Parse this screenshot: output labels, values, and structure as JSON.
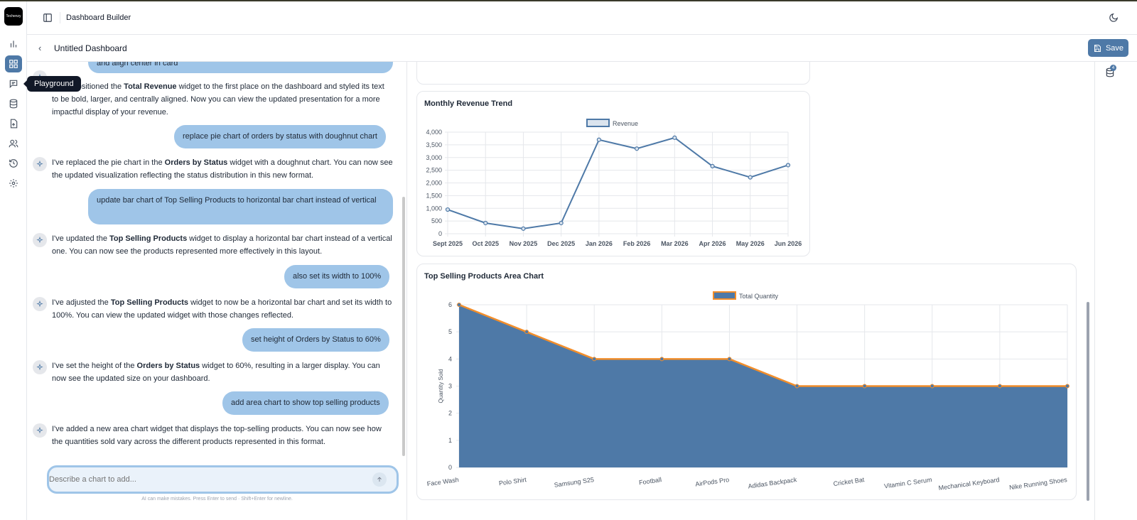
{
  "app": {
    "logo_text": "Techenzy",
    "title": "Dashboard Builder"
  },
  "tooltip": "Playground",
  "dashboard": {
    "title": "Untitled Dashboard",
    "save_label": "Save"
  },
  "sidebar": {
    "items": [
      {
        "icon": "bar-chart-icon"
      },
      {
        "icon": "grid-icon",
        "active": true
      },
      {
        "icon": "message-icon"
      },
      {
        "icon": "database-icon"
      },
      {
        "icon": "file-upload-icon"
      },
      {
        "icon": "users-icon"
      },
      {
        "icon": "history-icon"
      },
      {
        "icon": "settings-icon"
      }
    ]
  },
  "chat": {
    "messages": [
      {
        "role": "user",
        "text": "and align center in card"
      },
      {
        "role": "ai",
        "parts": [
          "I've repositioned the ",
          "Total Revenue",
          " widget to the first place on the dashboard and styled its text to be bold, larger, and centrally aligned. Now you can view the updated presentation for a more impactful display of your revenue."
        ]
      },
      {
        "role": "user",
        "text": "replace pie chart of orders by status with doughnut chart"
      },
      {
        "role": "ai",
        "parts": [
          "I've replaced the pie chart in the ",
          "Orders by Status",
          " widget with a doughnut chart. You can now see the updated visualization reflecting the status distribution in this new format."
        ]
      },
      {
        "role": "user",
        "text": "update bar chart of Top Selling Products to horizontal bar chart instead of vertical"
      },
      {
        "role": "ai",
        "parts": [
          "I've updated the ",
          "Top Selling Products",
          " widget to display a horizontal bar chart instead of a vertical one. You can now see the products represented more effectively in this layout."
        ]
      },
      {
        "role": "user",
        "text": "also set its width to 100%"
      },
      {
        "role": "ai",
        "parts": [
          "I've adjusted the ",
          "Top Selling Products",
          " widget to now be a horizontal bar chart and set its width to 100%. You can view the updated widget with those changes reflected."
        ]
      },
      {
        "role": "user",
        "text": "set height of Orders by Status to 60%"
      },
      {
        "role": "ai",
        "parts": [
          "I've set the height of the ",
          "Orders by Status",
          " widget to 60%, resulting in a larger display. You can now see the updated size on your dashboard."
        ]
      },
      {
        "role": "user",
        "text": "add area chart to show top selling products"
      },
      {
        "role": "ai",
        "parts": [
          "I've added a new area chart widget that displays the top-selling products. You can now see how the quantities sold vary across the different products represented in this format.",
          "",
          ""
        ]
      }
    ],
    "input_placeholder": "Describe a chart to add...",
    "hint": "AI can make mistakes. Press Enter to send · Shift+Enter for newline."
  },
  "data_sources_badge": "4",
  "colors": {
    "accent": "#4e79a7",
    "orange": "#f28e2b",
    "bubble": "#9fc5e8"
  },
  "chart_data": [
    {
      "type": "line",
      "title": "Monthly Revenue Trend",
      "categories": [
        "Sept 2025",
        "Oct 2025",
        "Nov 2025",
        "Dec 2025",
        "Jan 2026",
        "Feb 2026",
        "Mar 2026",
        "Apr 2026",
        "May 2026",
        "Jun 2026"
      ],
      "series": [
        {
          "name": "Revenue",
          "values": [
            950,
            420,
            200,
            420,
            3700,
            3350,
            3780,
            2660,
            2220,
            2700
          ]
        }
      ],
      "ylim": [
        0,
        4000
      ],
      "yticks": [
        "0",
        "500",
        "1,000",
        "1,500",
        "2,000",
        "2,500",
        "3,000",
        "3,500",
        "4,000"
      ],
      "legend": "top-center",
      "grid": true
    },
    {
      "type": "area",
      "title": "Top Selling Products Area Chart",
      "categories": [
        "Face Wash",
        "Polo Shirt",
        "Samsung S25",
        "Football",
        "AirPods Pro",
        "Adidas Backpack",
        "Cricket Bat",
        "Vitamin C Serum",
        "Mechanical Keyboard",
        "Nike Running Shoes"
      ],
      "series": [
        {
          "name": "Total Quantity",
          "values": [
            6,
            5,
            4,
            4,
            4,
            3,
            3,
            3,
            3,
            3
          ]
        }
      ],
      "ylabel": "Quantity Sold",
      "ylim": [
        0,
        6
      ],
      "yticks": [
        "0",
        "1",
        "2",
        "3",
        "4",
        "5",
        "6"
      ],
      "legend": "top-center",
      "grid": true
    }
  ]
}
